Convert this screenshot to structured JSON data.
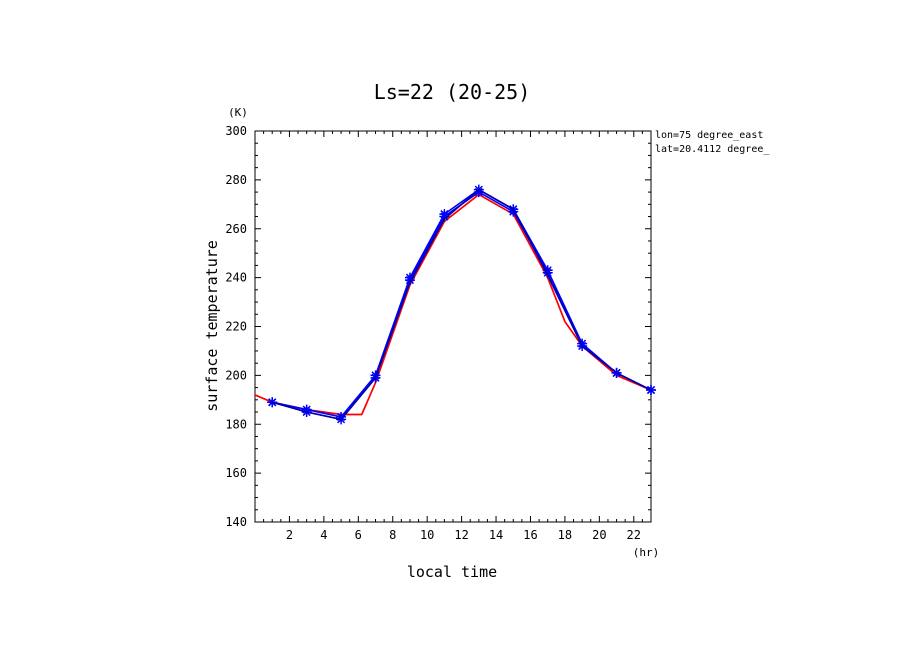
{
  "chart_data": {
    "type": "line",
    "title": "Ls=22 (20-25)",
    "xlabel": "local time",
    "ylabel": "surface temperature",
    "x_unit": "(hr)",
    "y_unit": "(K)",
    "annotations": [
      "lon=75 degree_east",
      "lat=20.4112 degree_"
    ],
    "xlim": [
      0,
      23
    ],
    "ylim": [
      140,
      300
    ],
    "x_ticks": [
      2,
      4,
      6,
      8,
      10,
      12,
      14,
      16,
      18,
      20,
      22
    ],
    "y_ticks": [
      140,
      160,
      180,
      200,
      220,
      240,
      260,
      280,
      300
    ],
    "grid": false,
    "series": [
      {
        "color": "#ff0000",
        "marker": "none",
        "x": [
          0,
          1,
          3,
          5,
          6.2,
          7,
          9,
          11,
          13,
          15,
          17,
          18,
          19,
          21,
          23
        ],
        "y": [
          192,
          189,
          186,
          184,
          184,
          197,
          237,
          263,
          274,
          266,
          240,
          222,
          212,
          200,
          194
        ]
      },
      {
        "color": "#0000ff",
        "marker": "star",
        "x": [
          1,
          3,
          5,
          7,
          9,
          11,
          13,
          15,
          17,
          19,
          21,
          23
        ],
        "y": [
          189,
          186,
          183,
          200,
          240,
          266,
          276,
          268,
          243,
          213,
          201,
          194
        ]
      },
      {
        "color": "#0000ff",
        "marker": "star",
        "x": [
          1,
          3,
          5,
          7,
          9,
          11,
          13,
          15,
          17,
          19,
          21,
          23
        ],
        "y": [
          189,
          185,
          182,
          199,
          239,
          265,
          275,
          267,
          242,
          212,
          201,
          194
        ]
      },
      {
        "color": "#0000aa",
        "marker": "none",
        "x": [
          1,
          3,
          5,
          7,
          9,
          11,
          13,
          15,
          17,
          19,
          21,
          23
        ],
        "y": [
          189,
          185,
          182,
          199,
          238,
          264,
          276,
          268,
          241,
          212,
          201,
          194
        ]
      }
    ]
  }
}
